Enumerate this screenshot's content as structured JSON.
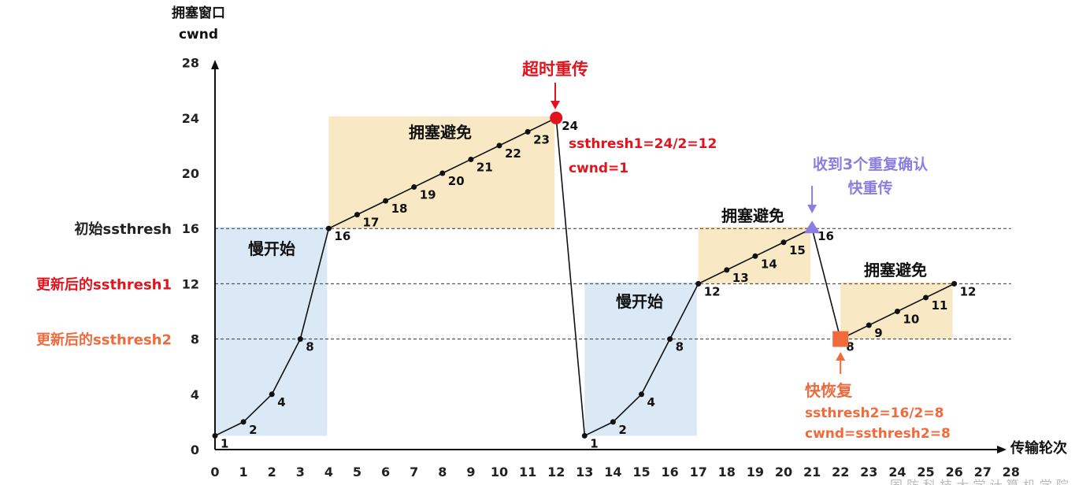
{
  "chart_data": {
    "type": "line",
    "ylabel_line1": "拥塞窗口",
    "ylabel_line2": "cwnd",
    "xlabel": "传输轮次",
    "ylim": [
      0,
      28
    ],
    "xlim": [
      0,
      28
    ],
    "yticks": [
      "0",
      "4",
      "8",
      "12",
      "16",
      "20",
      "24",
      "28"
    ],
    "xticks": [
      "0",
      "1",
      "2",
      "3",
      "4",
      "5",
      "6",
      "7",
      "8",
      "9",
      "10",
      "11",
      "12",
      "13",
      "14",
      "15",
      "16",
      "17",
      "18",
      "19",
      "20",
      "21",
      "22",
      "23",
      "24",
      "25",
      "26",
      "27",
      "28"
    ],
    "series": [
      {
        "x": [
          0,
          1,
          2,
          3,
          4,
          5,
          6,
          7,
          8,
          9,
          10,
          11,
          12
        ],
        "y": [
          1,
          2,
          4,
          8,
          16,
          17,
          18,
          19,
          20,
          21,
          22,
          23,
          24
        ],
        "labels": [
          "1",
          "2",
          "4",
          "8",
          "16",
          "17",
          "18",
          "19",
          "20",
          "21",
          "22",
          "23",
          "24"
        ]
      },
      {
        "x": [
          13,
          14,
          15,
          16,
          17,
          18,
          19,
          20,
          21
        ],
        "y": [
          1,
          2,
          4,
          8,
          12,
          13,
          14,
          15,
          16
        ],
        "labels": [
          "1",
          "2",
          "4",
          "8",
          "12",
          "13",
          "14",
          "15",
          "16"
        ]
      },
      {
        "x": [
          22,
          23,
          24,
          25,
          26
        ],
        "y": [
          8,
          9,
          10,
          11,
          12
        ],
        "labels": [
          "8",
          "9",
          "10",
          "11",
          "12"
        ]
      }
    ],
    "threshold_lines": [
      {
        "y": 16,
        "label": "初始ssthresh",
        "color": "#222222"
      },
      {
        "y": 12,
        "label": "更新后的ssthresh1",
        "color": "#e0141e"
      },
      {
        "y": 8,
        "label": "更新后的ssthresh2",
        "color": "#f06a3c"
      }
    ],
    "regions": [
      {
        "label": "慢开始",
        "x": [
          0,
          4
        ],
        "y": [
          1,
          16
        ],
        "color": "#dbe9f7"
      },
      {
        "label": "拥塞避免",
        "x": [
          4,
          12
        ],
        "y": [
          16,
          24
        ],
        "color": "#f8e8c4"
      },
      {
        "label": "慢开始",
        "x": [
          13,
          17
        ],
        "y": [
          1,
          12
        ],
        "color": "#dbe9f7"
      },
      {
        "label": "拥塞避免",
        "x": [
          17,
          21
        ],
        "y": [
          12,
          16
        ],
        "color": "#f8e8c4"
      },
      {
        "label": "拥塞避免",
        "x": [
          22,
          26
        ],
        "y": [
          8,
          12
        ],
        "color": "#f8e8c4"
      }
    ],
    "annotations": {
      "timeout": {
        "title": "超时重传",
        "line1": "ssthresh1=24/2=12",
        "line2": "cwnd=1",
        "color": "#e0141e"
      },
      "dupack": {
        "title_line1": "收到3个重复确认",
        "title_line2": "快重传",
        "color": "#8a7ee0"
      },
      "fastrec": {
        "title": "快恢复",
        "line1": "ssthresh2=16/2=8",
        "line2": "cwnd=ssthresh2=8",
        "color": "#f06a3c"
      }
    },
    "watermark": "国 防 科 技 大 学 计 算 机 学 院"
  }
}
